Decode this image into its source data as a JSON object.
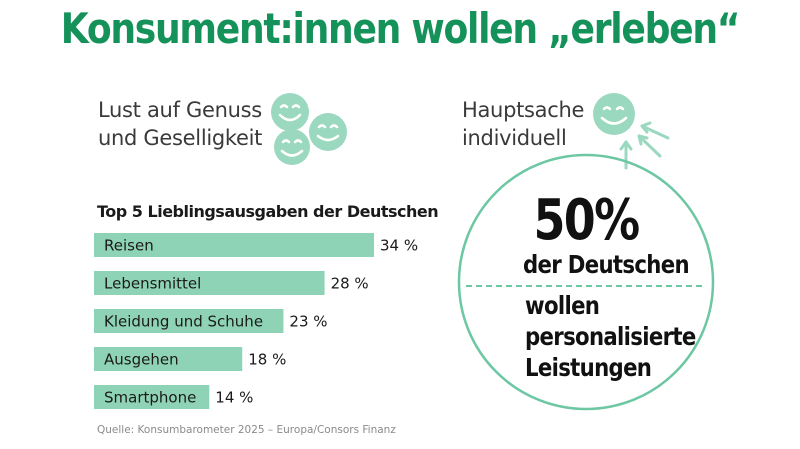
{
  "headline": "Konsument:innen wollen „erleben“",
  "left_section": {
    "title_lines": [
      "Lust auf Genuss",
      "und Geselligkeit"
    ],
    "icon": "smiley-faces-icon"
  },
  "right_section": {
    "title_lines": [
      "Hauptsache",
      "individuell"
    ],
    "icon": "smiley-arrows-icon",
    "stat_value": "50%",
    "stat_line1": "der Deutschen",
    "stat_lines_after_divider": [
      "wollen",
      "personalisierte",
      "Leistungen"
    ]
  },
  "source": "Quelle: Konsumbarometer 2025 – Europa/Consors Finanz",
  "colors": {
    "headline": "#14925a",
    "bar": "#8fd3b6",
    "icon": "#9ad8bf",
    "circle_border": "#6cc7a2",
    "divider": "#6cc7a2"
  },
  "chart_data": {
    "type": "bar",
    "orientation": "horizontal",
    "title": "Top 5 Lieblingsausgaben der Deutschen",
    "categories": [
      "Reisen",
      "Lebensmittel",
      "Kleidung und Schuhe",
      "Ausgehen",
      "Smartphone"
    ],
    "values": [
      34,
      28,
      23,
      18,
      14
    ],
    "value_labels": [
      "34 %",
      "28 %",
      "23 %",
      "18 %",
      "14 %"
    ],
    "unit": "%",
    "xlim": [
      0,
      100
    ],
    "grid": false,
    "legend": "none"
  }
}
